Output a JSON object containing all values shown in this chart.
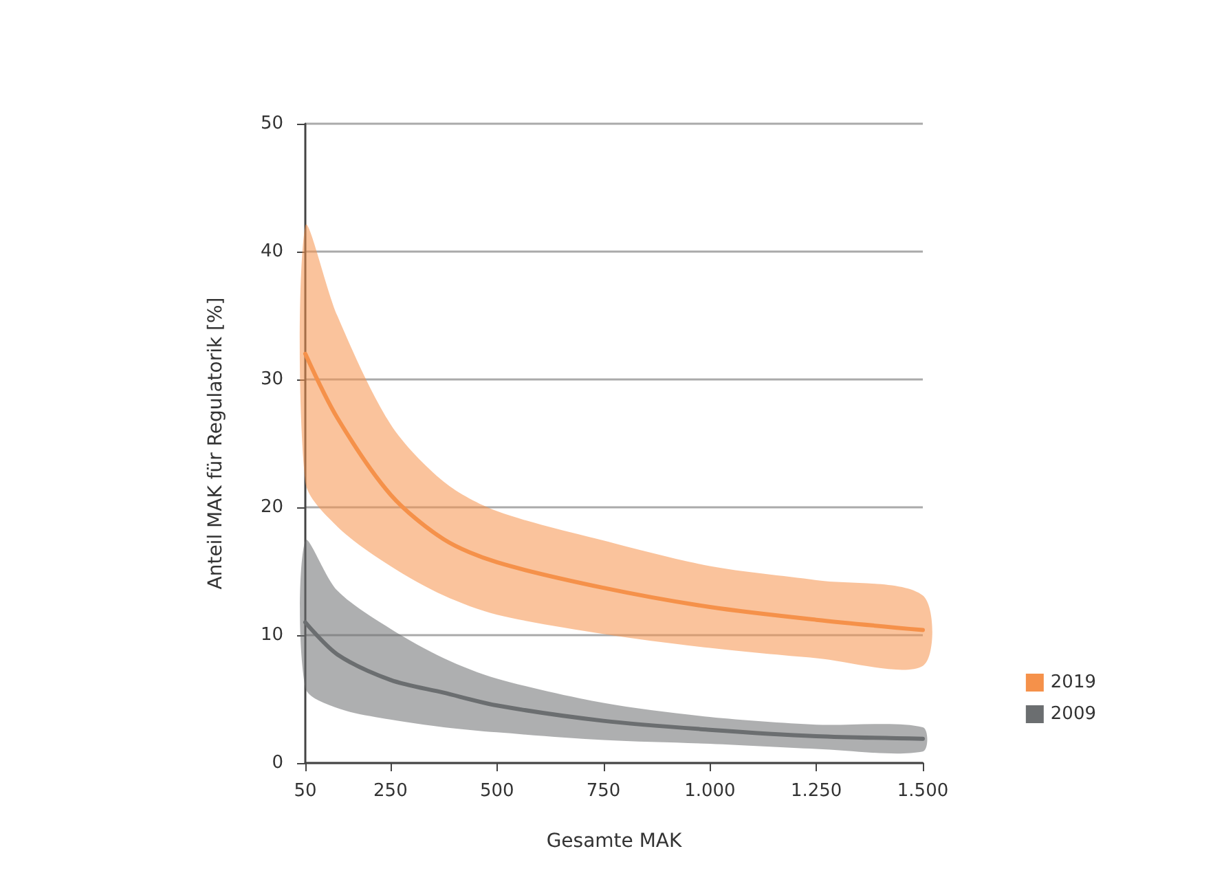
{
  "chart_data": {
    "type": "line",
    "xlabel": "Gesamte MAK",
    "ylabel": "Anteil MAK für Regulatorik [%]",
    "x": [
      50,
      125,
      250,
      375,
      500,
      750,
      1000,
      1250,
      1500
    ],
    "series": [
      {
        "name": "2019",
        "color": "#f5914a",
        "values": [
          32,
          27,
          21,
          17.5,
          15.7,
          13.7,
          12.2,
          11.2,
          10.4
        ],
        "lower": [
          22,
          18.5,
          15.4,
          13.1,
          11.6,
          10.1,
          9,
          8.2,
          7.6
        ],
        "upper": [
          42,
          35,
          26.5,
          22,
          19.7,
          17.4,
          15.4,
          14.3,
          13.1
        ]
      },
      {
        "name": "2009",
        "color": "#6b6e70",
        "values": [
          11,
          8.5,
          6.5,
          5.5,
          4.5,
          3.3,
          2.6,
          2.1,
          1.9
        ],
        "lower": [
          5.9,
          4.3,
          3.4,
          2.8,
          2.4,
          1.8,
          1.5,
          1.1,
          0.9
        ],
        "upper": [
          17.4,
          13.5,
          10.5,
          8.2,
          6.6,
          4.7,
          3.6,
          3,
          2.8
        ]
      }
    ],
    "xlim": [
      50,
      1500
    ],
    "xticks": [
      50,
      250,
      500,
      750,
      {
        "value": 1000,
        "label": "1.000"
      },
      {
        "value": 1250,
        "label": "1.250"
      },
      {
        "value": 1500,
        "label": "1.500"
      }
    ],
    "ylim": [
      0,
      50
    ],
    "yticks": [
      0,
      10,
      20,
      30,
      40,
      50
    ],
    "grid": "y",
    "legend": "bottom right",
    "marker": "none",
    "line_style": "solid"
  }
}
